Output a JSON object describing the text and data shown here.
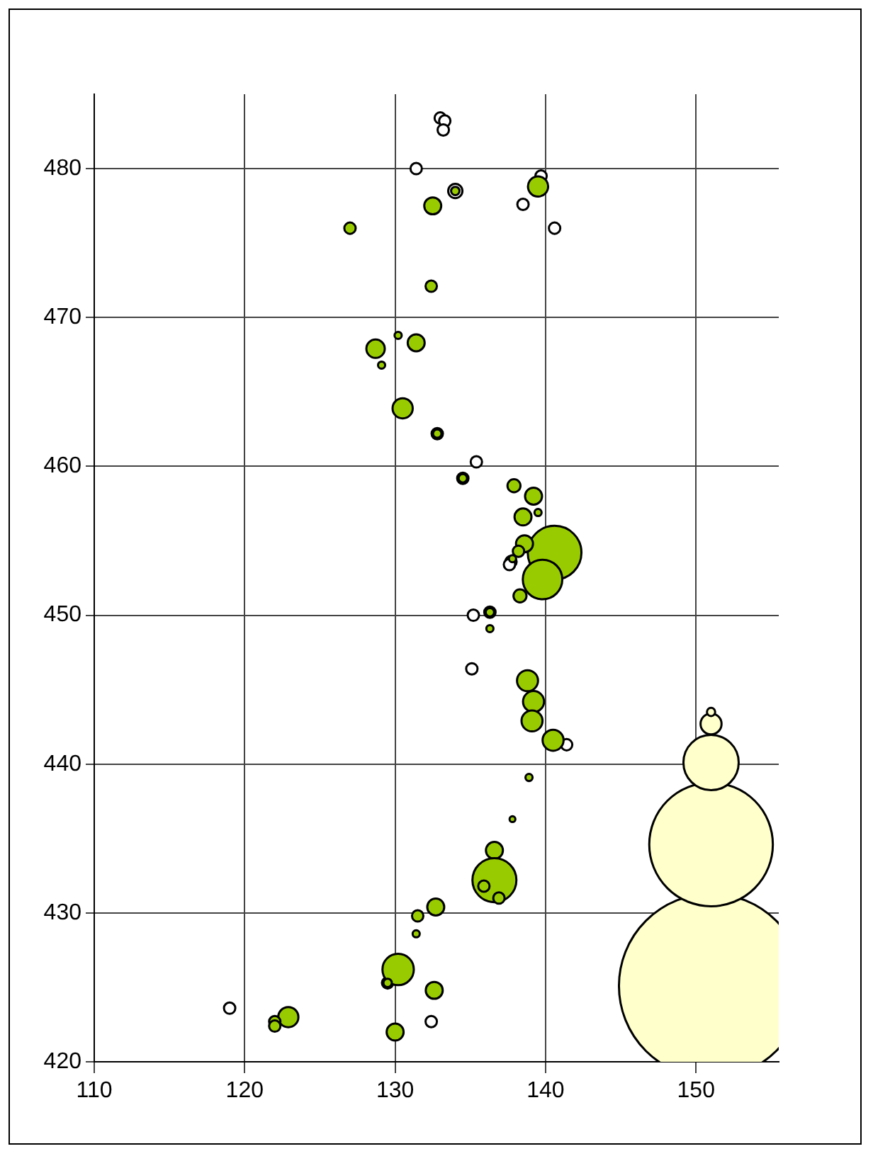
{
  "chart_data": {
    "type": "bubble",
    "xlim": [
      110,
      155.5
    ],
    "ylim": [
      420,
      485
    ],
    "xticks": [
      110,
      120,
      130,
      140,
      150
    ],
    "yticks": [
      420,
      430,
      440,
      450,
      460,
      470,
      480
    ],
    "grid": true,
    "legend": false,
    "series": [
      {
        "color": "#ffffff",
        "x": [
          133.0,
          133.3,
          133.2,
          131.4,
          139.7,
          138.5,
          140.6,
          134.0,
          132.8,
          135.4,
          134.5,
          137.7,
          137.6,
          135.2,
          136.3,
          135.1,
          141.4,
          129.5,
          132.4,
          119.0
        ],
        "values": [
          483.4,
          483.2,
          482.6,
          480.0,
          479.5,
          477.6,
          476.0,
          478.5,
          462.2,
          460.3,
          459.2,
          453.6,
          453.4,
          450.0,
          450.2,
          446.4,
          441.3,
          425.3,
          422.7,
          423.6
        ],
        "sizes": [
          0.0038,
          0.0038,
          0.0038,
          0.0038,
          0.0038,
          0.0038,
          0.0038,
          0.006,
          0.0038,
          0.0038,
          0.0038,
          0.0038,
          0.0038,
          0.0038,
          0.0038,
          0.0038,
          0.0038,
          0.0038,
          0.0038,
          0.0038
        ]
      },
      {
        "color": "#99cc00",
        "x": [
          139.5,
          132.5,
          134.0,
          127.0,
          132.4,
          131.4,
          128.7,
          130.2,
          129.1,
          130.5,
          132.8,
          134.5,
          137.9,
          139.2,
          139.5,
          138.5,
          140.6,
          138.6,
          138.2,
          137.8,
          139.8,
          138.3,
          136.3,
          136.3,
          138.8,
          139.2,
          139.1,
          140.5,
          138.9,
          137.8,
          136.6,
          136.6,
          135.9,
          136.9,
          132.7,
          131.5,
          131.4,
          130.2,
          129.5,
          132.6,
          130.0,
          122.9,
          122.0,
          122.0
        ],
        "values": [
          478.8,
          477.5,
          478.5,
          476.0,
          472.1,
          468.3,
          467.9,
          468.8,
          466.8,
          463.9,
          462.2,
          459.2,
          458.7,
          458.0,
          456.9,
          456.6,
          454.2,
          454.8,
          454.3,
          453.8,
          452.4,
          451.3,
          450.2,
          449.1,
          445.6,
          444.2,
          442.9,
          441.6,
          439.1,
          436.3,
          434.2,
          432.2,
          431.8,
          431.0,
          430.4,
          429.8,
          428.6,
          426.2,
          425.3,
          424.8,
          422.0,
          423.0,
          422.7,
          422.4
        ],
        "sizes": [
          0.012,
          0.0085,
          0.0021,
          0.0038,
          0.0038,
          0.0085,
          0.01,
          0.0015,
          0.0015,
          0.012,
          0.0021,
          0.0021,
          0.005,
          0.0085,
          0.0015,
          0.0085,
          0.085,
          0.0085,
          0.0038,
          0.0015,
          0.046,
          0.005,
          0.0021,
          0.0015,
          0.013,
          0.013,
          0.013,
          0.013,
          0.0015,
          0.001,
          0.0085,
          0.057,
          0.0038,
          0.0038,
          0.0085,
          0.0038,
          0.0015,
          0.029,
          0.0021,
          0.0085,
          0.0085,
          0.012,
          0.0038,
          0.0038
        ]
      },
      {
        "color": "#ffffcc",
        "x": [
          151,
          151,
          151,
          151,
          151
        ],
        "values": [
          425.1,
          434.6,
          440.1,
          442.7,
          443.5
        ],
        "sizes": [
          1,
          0.45,
          0.09,
          0.013,
          0.002
        ]
      }
    ]
  }
}
